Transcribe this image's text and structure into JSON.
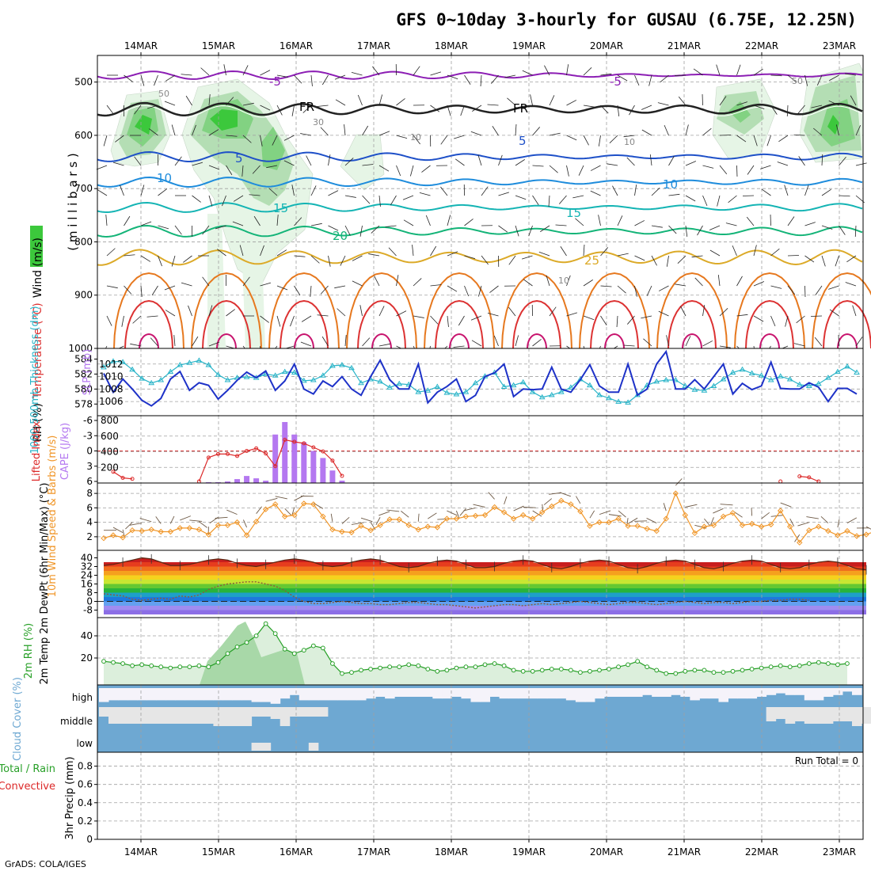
{
  "title": "GFS 0~10day 3-hourly for GUSAU (6.75E, 12.25N)",
  "footer": "GrADS: COLA/IGES",
  "run_total": "Run Total = 0",
  "colors": {
    "rh_dark": "#3cc83c",
    "rh_mid": "#82d282",
    "rh_light": "#e6f5e6",
    "temp_cold": "#8c1eb4",
    "temp_5": "#1e50c8",
    "temp_10": "#1e8cdc",
    "temp_15": "#14b4b4",
    "temp_20": "#14b478",
    "temp_25": "#dcaa28",
    "temp_30": "#e6781e",
    "temp_35": "#dc3232",
    "slp": "#1e32c8",
    "thickness": "#28b4c8",
    "lifted": "#dc2828",
    "cape": "#b478f0",
    "wind10": "#f09628",
    "rh2m": "#28a028",
    "cloud": "#6ea8d2",
    "grid": "#a0a0a0"
  },
  "chart_data": [
    {
      "type": "line",
      "panel": "upper-air",
      "ylabel_parts": [
        "RH (%)",
        "Temperature (°C)",
        "Wind (m/s)"
      ],
      "ylabel_axis": "( m i l l i b a r s )",
      "x_ticks": [
        "14MAR",
        "15MAR",
        "16MAR",
        "17MAR",
        "18MAR",
        "19MAR",
        "20MAR",
        "21MAR",
        "22MAR",
        "23MAR"
      ],
      "y_ticks": [
        "500",
        "600",
        "700",
        "800",
        "900",
        "1000"
      ],
      "ylim": [
        1000,
        450
      ],
      "annotations": [
        "-5",
        "-5",
        "FR",
        "FR",
        "5",
        "5",
        "10",
        "10",
        "15",
        "15",
        "20",
        "25",
        "50",
        "50",
        "30",
        "10",
        "10",
        "10"
      ]
    },
    {
      "type": "line",
      "panel": "slp-thickness",
      "ylabel_left": "1000-500mb Thickness (dm)",
      "ylabel_right": "SLP (mb)",
      "y_ticks_left": [
        "578",
        "580",
        "582",
        "584"
      ],
      "y_ticks_right": [
        "1006",
        "1008",
        "1010",
        "1012"
      ],
      "series": [
        {
          "name": "SLP (mb)",
          "axis": "right",
          "values": [
            1010.5,
            1007.5,
            1009.6,
            1008.0,
            1006.2,
            1005.3,
            1006.5,
            1009.6,
            1010.8,
            1007.8,
            1009.0,
            1008.6,
            1006.4,
            1007.8,
            1009.4,
            1010.7,
            1009.8,
            1010.9,
            1007.8,
            1009.3,
            1012.0,
            1008.0,
            1007.2,
            1009.3,
            1008.4,
            1010.0,
            1008.0,
            1007.0,
            1010.0,
            1012.6,
            1009.5,
            1008.0,
            1008.0,
            1012.0,
            1005.8,
            1007.5,
            1008.4,
            1009.6,
            1006.0,
            1007.0,
            1010.0,
            1010.6,
            1012.0,
            1006.8,
            1008.0,
            1007.9,
            1008.0,
            1011.5,
            1008.0,
            1007.5,
            1009.5,
            1011.9,
            1008.5,
            1007.5,
            1007.5,
            1012.0,
            1007.0,
            1008.0,
            1012.0,
            1014.0,
            1008.0,
            1008.0,
            1009.5,
            1008.0,
            1010.0,
            1012.0,
            1007.2,
            1008.9,
            1007.9,
            1008.5,
            1012.3,
            1008.1,
            1008.0,
            1008.0,
            1009.0,
            1008.3,
            1006.0,
            1008.1,
            1008.1,
            1007.2
          ]
        },
        {
          "name": "Thickness (dm)",
          "axis": "left",
          "values": [
            582.9,
            583.7,
            583.6,
            582.6,
            581.4,
            580.8,
            581.2,
            582.3,
            583.2,
            583.5,
            583.8,
            583.2,
            581.9,
            581.2,
            581.5,
            581.6,
            581.5,
            582.0,
            581.8,
            582.3,
            582.2,
            581.1,
            581.2,
            581.8,
            583.1,
            583.2,
            582.8,
            580.8,
            581.3,
            581.0,
            580.2,
            580.7,
            580.6,
            579.6,
            579.8,
            580.3,
            579.5,
            579.3,
            579.6,
            580.8,
            581.7,
            582.2,
            580.3,
            580.5,
            580.9,
            579.6,
            578.9,
            579.2,
            579.6,
            580.2,
            581.3,
            580.5,
            579.2,
            578.8,
            578.3,
            578.2,
            579.2,
            580.5,
            581.0,
            581.2,
            581.2,
            580.4,
            579.9,
            579.8,
            580.4,
            581.3,
            582.2,
            582.6,
            582.1,
            581.8,
            581.2,
            581.7,
            581.3,
            580.6,
            580.4,
            580.7,
            581.5,
            582.3,
            583.0,
            582.2
          ]
        }
      ]
    },
    {
      "type": "bar",
      "panel": "cape-li",
      "ylabel_left": "Lifted Index",
      "ylabel_right": "CAPE (J/kg)",
      "y_ticks_left": [
        "-6",
        "-3",
        "0",
        "3",
        "6"
      ],
      "y_ticks_right": [
        "200",
        "400",
        "600",
        "800"
      ],
      "cape_values": [
        0,
        0,
        0,
        0,
        0,
        0,
        0,
        0,
        0,
        0,
        0,
        10,
        10,
        20,
        50,
        90,
        60,
        30,
        620,
        780,
        620,
        520,
        410,
        320,
        160,
        30,
        0,
        0,
        0,
        0,
        0,
        0,
        0,
        0,
        0,
        0,
        0,
        0,
        0,
        0,
        0,
        0,
        0,
        0,
        0,
        0,
        0,
        0,
        0,
        0,
        0,
        0,
        0,
        0,
        0,
        0,
        0,
        0,
        0,
        0,
        0,
        0,
        0,
        0,
        0,
        0,
        0,
        0,
        0,
        0,
        0,
        0,
        0,
        0,
        0,
        0,
        0,
        0,
        0,
        0
      ],
      "li_values": [
        null,
        4.1,
        5.3,
        5.5,
        null,
        null,
        null,
        null,
        null,
        null,
        6,
        1.3,
        0.6,
        0.6,
        1.0,
        0,
        -0.5,
        0.5,
        3,
        -2.2,
        -1.8,
        -1.5,
        -0.7,
        0.1,
        1.9,
        4.9,
        null,
        null,
        null,
        null,
        null,
        null,
        null,
        null,
        null,
        null,
        null,
        null,
        null,
        null,
        null,
        null,
        null,
        null,
        null,
        null,
        null,
        null,
        null,
        null,
        null,
        null,
        null,
        null,
        null,
        null,
        null,
        null,
        null,
        null,
        null,
        null,
        null,
        null,
        null,
        null,
        null,
        null,
        null,
        null,
        null,
        6,
        null,
        5.0,
        5.2,
        6,
        null,
        null,
        null,
        null
      ]
    },
    {
      "type": "line",
      "panel": "wind10m",
      "ylabel": "10m Wind Speed & Barbs (m/s)",
      "y_ticks": [
        "2",
        "4",
        "6",
        "8"
      ],
      "values": [
        1.8,
        2.2,
        1.9,
        2.9,
        2.8,
        3.0,
        2.7,
        2.7,
        3.2,
        3.2,
        3.0,
        2.3,
        3.6,
        3.6,
        4.0,
        2.2,
        4.1,
        5.8,
        6.5,
        4.8,
        5.0,
        6.6,
        6.5,
        4.8,
        3.0,
        2.7,
        2.6,
        3.5,
        2.9,
        3.6,
        4.4,
        4.4,
        3.6,
        3.0,
        3.4,
        3.3,
        4.5,
        4.5,
        4.8,
        4.9,
        5.0,
        6.1,
        5.4,
        4.5,
        5.0,
        4.5,
        5.4,
        6.2,
        7.0,
        6.5,
        5.5,
        3.5,
        4.0,
        4.0,
        4.5,
        3.5,
        3.5,
        3.1,
        2.8,
        4.5,
        8.0,
        5.0,
        2.5,
        3.4,
        3.6,
        4.8,
        5.3,
        3.6,
        3.8,
        3.4,
        3.7,
        5.6,
        3.4,
        1.2,
        2.9,
        3.4,
        2.8,
        2.2,
        2.8,
        2.1,
        2.3,
        2.8
      ]
    },
    {
      "type": "area",
      "panel": "temp2m",
      "ylabel": "2m Temp 2m DewPt (6hr Min/Max) (°C)",
      "y_ticks": [
        "40",
        "32",
        "24",
        "16",
        "8",
        "0",
        "-8"
      ],
      "temp_max": [
        33,
        34,
        36,
        38,
        40,
        39,
        36,
        33,
        33,
        34,
        36,
        38,
        39,
        38,
        35,
        33,
        32,
        34,
        36,
        38,
        39,
        38,
        36,
        33,
        32,
        33,
        36,
        38,
        39,
        38,
        35,
        32,
        31,
        32,
        35,
        37,
        38,
        37,
        34,
        31,
        31,
        32,
        35,
        37,
        38,
        37,
        34,
        31,
        30,
        32,
        35,
        37,
        38,
        37,
        34,
        31,
        30,
        32,
        35,
        37,
        38,
        37,
        34,
        31,
        30,
        32,
        35,
        37,
        38,
        37,
        34,
        31,
        30,
        31,
        34,
        36,
        37,
        36,
        33,
        30,
        29
      ],
      "dewpoint": [
        7,
        6,
        5,
        2,
        1,
        2,
        3,
        2,
        5,
        4,
        6,
        11,
        14,
        16,
        17,
        18,
        18,
        16,
        14,
        10,
        4,
        0,
        -2,
        -2,
        -1,
        0,
        -1,
        -2,
        -2,
        -3,
        -3,
        -2,
        -1,
        -1,
        -2,
        -3,
        -3,
        -4,
        -5,
        -6,
        -5,
        -4,
        -3,
        -3,
        -4,
        -3,
        -2,
        -3,
        -2,
        -1,
        0,
        -1,
        -2,
        -3,
        -2,
        -1,
        -1,
        -2,
        -3,
        -2,
        -1,
        0,
        -1,
        -2,
        -1,
        -1,
        -2,
        -1,
        0,
        0,
        1,
        1,
        2,
        2,
        1
      ]
    },
    {
      "type": "area",
      "panel": "rh2m",
      "ylabel": "2m RH (%)",
      "y_ticks": [
        "20",
        "40"
      ],
      "values": [
        17,
        16,
        15,
        13,
        14,
        13,
        12,
        11,
        12,
        12,
        13,
        12,
        16,
        24,
        30,
        34,
        40,
        51,
        42,
        28,
        24,
        27,
        31,
        29,
        15,
        6,
        7,
        9,
        10,
        11,
        12,
        12,
        14,
        13,
        10,
        8,
        9,
        11,
        12,
        12,
        14,
        15,
        13,
        9,
        8,
        8,
        9,
        10,
        10,
        9,
        7,
        8,
        9,
        10,
        12,
        14,
        17,
        12,
        9,
        6,
        6,
        8,
        9,
        9,
        7,
        7,
        8,
        9,
        10,
        11,
        12,
        13,
        12,
        13,
        15,
        16,
        15,
        14,
        15
      ]
    },
    {
      "type": "heatmap",
      "panel": "cloud",
      "ylabel": "Cloud Cover (%)",
      "y_ticks": [
        "high",
        "middle",
        "low"
      ],
      "high_pct": [
        20,
        30,
        30,
        30,
        30,
        30,
        30,
        30,
        30,
        30,
        30,
        30,
        30,
        30,
        30,
        30,
        20,
        20,
        10,
        40,
        60,
        30,
        30,
        30,
        30,
        30,
        30,
        30,
        40,
        50,
        40,
        50,
        50,
        50,
        50,
        40,
        40,
        50,
        40,
        20,
        20,
        50,
        40,
        40,
        40,
        40,
        40,
        40,
        40,
        30,
        20,
        20,
        40,
        50,
        50,
        50,
        50,
        60,
        50,
        50,
        60,
        50,
        30,
        40,
        40,
        20,
        40,
        40,
        40,
        50,
        60,
        70,
        60,
        60,
        30,
        30,
        50,
        60,
        80,
        60
      ],
      "middle_pct": [
        40,
        70,
        70,
        70,
        70,
        70,
        70,
        70,
        70,
        70,
        70,
        70,
        80,
        80,
        80,
        80,
        40,
        40,
        50,
        80,
        40,
        40,
        40,
        40,
        0,
        0,
        0,
        0,
        0,
        0,
        0,
        0,
        0,
        0,
        0,
        0,
        0,
        0,
        0,
        0,
        0,
        0,
        0,
        0,
        0,
        0,
        0,
        0,
        0,
        0,
        0,
        0,
        0,
        0,
        0,
        0,
        0,
        0,
        0,
        0,
        0,
        0,
        0,
        0,
        0,
        0,
        0,
        0,
        0,
        30,
        60,
        50,
        70,
        60,
        70,
        70,
        70,
        60,
        60,
        80,
        70,
        60
      ],
      "low_pct": [
        0,
        0,
        0,
        0,
        0,
        0,
        0,
        0,
        0,
        0,
        0,
        0,
        0,
        0,
        0,
        0,
        10,
        10,
        0,
        0,
        0,
        0,
        30,
        0,
        0,
        0,
        0,
        0,
        0,
        0,
        0,
        0,
        0,
        0,
        0,
        0,
        0,
        0,
        0,
        0,
        0,
        0,
        0,
        0,
        0,
        0,
        0,
        0,
        0,
        0,
        0,
        0,
        0,
        0,
        0,
        0,
        0,
        0,
        0,
        0,
        0,
        0,
        0,
        0,
        0,
        0,
        0,
        0,
        0,
        0,
        0,
        0,
        0,
        0,
        0,
        0,
        0,
        0,
        0,
        0
      ]
    },
    {
      "type": "bar",
      "panel": "precip",
      "ylabel_top": "Total / Rain",
      "ylabel_mid": "Convective",
      "ylabel_axis": "3hr Precip (mm)",
      "y_ticks": [
        "0",
        "0.2",
        "0.4",
        "0.6",
        "0.8"
      ],
      "x_ticks": [
        "14MAR",
        "15MAR",
        "16MAR",
        "17MAR",
        "18MAR",
        "19MAR",
        "20MAR",
        "21MAR",
        "22MAR",
        "23MAR"
      ],
      "values": [
        0,
        0,
        0,
        0,
        0,
        0,
        0,
        0,
        0,
        0,
        0,
        0,
        0,
        0,
        0,
        0,
        0,
        0,
        0,
        0,
        0,
        0,
        0,
        0,
        0,
        0,
        0,
        0,
        0,
        0,
        0,
        0,
        0,
        0,
        0,
        0,
        0,
        0,
        0,
        0,
        0,
        0,
        0,
        0,
        0,
        0,
        0,
        0,
        0,
        0,
        0,
        0,
        0,
        0,
        0,
        0,
        0,
        0,
        0,
        0,
        0,
        0,
        0,
        0,
        0,
        0,
        0,
        0,
        0,
        0,
        0,
        0,
        0,
        0,
        0,
        0,
        0,
        0,
        0,
        0
      ]
    }
  ]
}
